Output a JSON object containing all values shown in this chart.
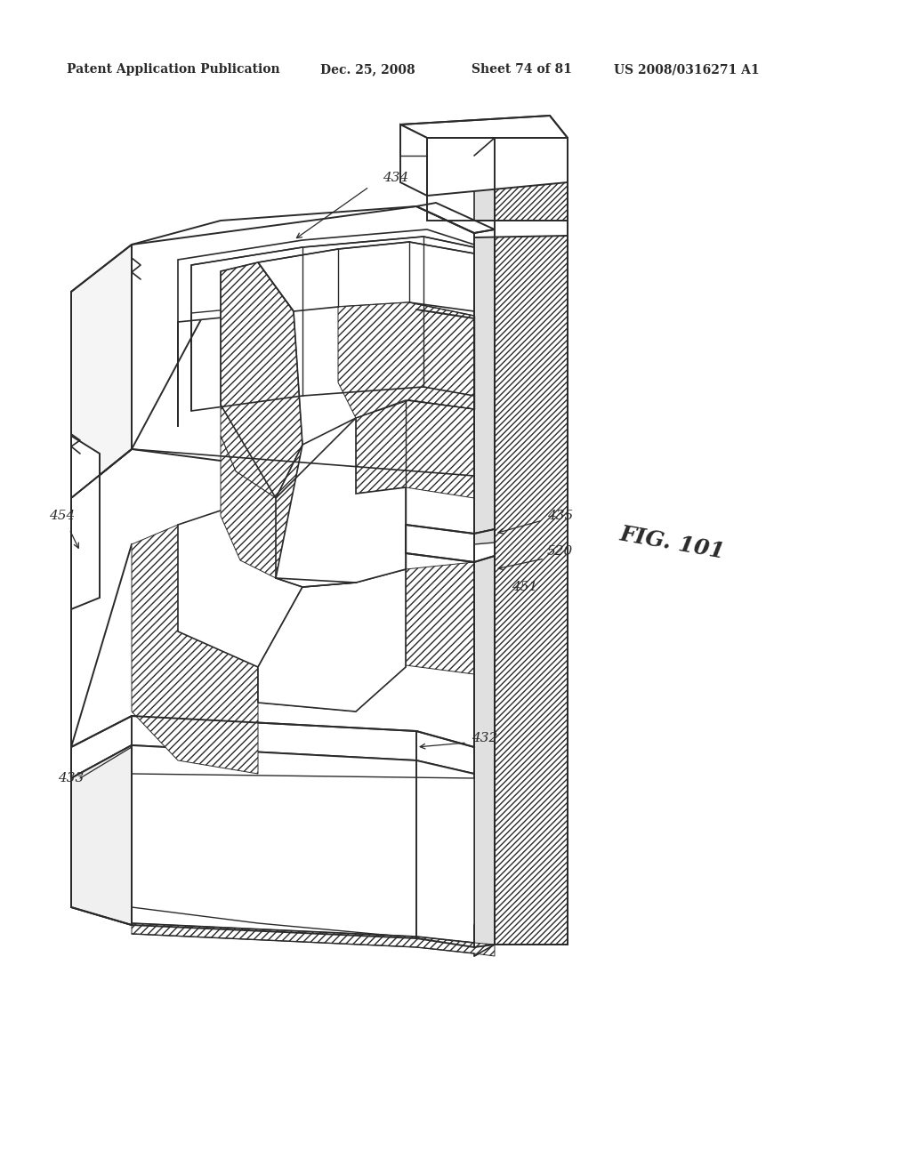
{
  "bg_color": "#ffffff",
  "line_color": "#2a2a2a",
  "header_text": "Patent Application Publication",
  "header_date": "Dec. 25, 2008",
  "header_sheet": "Sheet 74 of 81",
  "header_patent": "US 2008/0316271 A1",
  "fig_label": "FIG. 101",
  "label_454_text": "454",
  "label_434_text": "434",
  "label_433_text": "433",
  "label_435_text": "435",
  "label_520_text": "520",
  "label_451_text": "451",
  "label_432_text": "432"
}
